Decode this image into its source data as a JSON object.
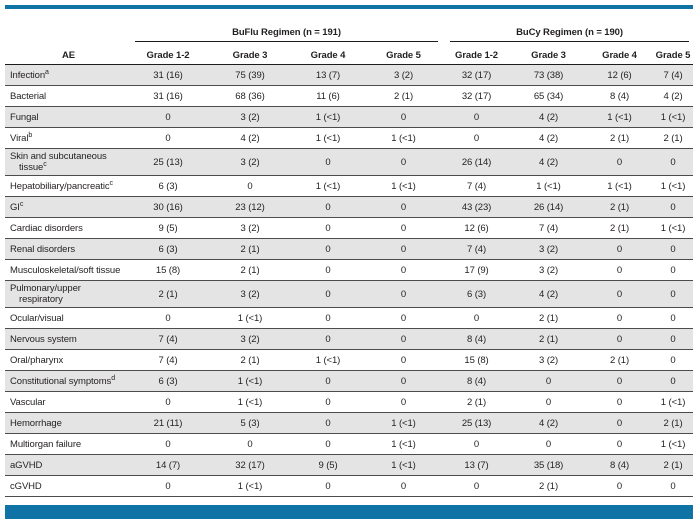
{
  "colors": {
    "accent_blue": "#0f73a5",
    "row_shade": "#e4e4e4",
    "rule_dark": "#1c1c1e"
  },
  "header": {
    "ae": "AE",
    "spanners": [
      "BuFlu Regimen (n = 191)",
      "BuCy Regimen (n = 190)"
    ],
    "grades": [
      "Grade 1-2",
      "Grade 3",
      "Grade 4",
      "Grade 5"
    ]
  },
  "table": {
    "rows": [
      {
        "label": "Infection",
        "sup": "a",
        "values": [
          "31 (16)",
          "75 (39)",
          "13 (7)",
          "3 (2)",
          "32 (17)",
          "73 (38)",
          "12 (6)",
          "7 (4)"
        ]
      },
      {
        "label": "Bacterial",
        "values": [
          "31 (16)",
          "68 (36)",
          "11 (6)",
          "2 (1)",
          "32 (17)",
          "65 (34)",
          "8 (4)",
          "4 (2)"
        ]
      },
      {
        "label": "Fungal",
        "values": [
          "0",
          "3 (2)",
          "1 (<1)",
          "0",
          "0",
          "4 (2)",
          "1 (<1)",
          "1 (<1)"
        ]
      },
      {
        "label": "Viral",
        "sup": "b",
        "values": [
          "0",
          "4 (2)",
          "1 (<1)",
          "1 (<1)",
          "0",
          "4 (2)",
          "2 (1)",
          "2 (1)"
        ]
      },
      {
        "label": "Skin and subcutaneous",
        "label2": "tissue",
        "sup": "c",
        "values": [
          "25 (13)",
          "3 (2)",
          "0",
          "0",
          "26 (14)",
          "4 (2)",
          "0",
          "0"
        ]
      },
      {
        "label": "Hepatobiliary/pancreatic",
        "sup": "c",
        "values": [
          "6 (3)",
          "0",
          "1 (<1)",
          "1 (<1)",
          "7 (4)",
          "1 (<1)",
          "1 (<1)",
          "1 (<1)"
        ]
      },
      {
        "label": "GI",
        "sup": "c",
        "values": [
          "30 (16)",
          "23 (12)",
          "0",
          "0",
          "43 (23)",
          "26 (14)",
          "2 (1)",
          "0"
        ]
      },
      {
        "label": "Cardiac disorders",
        "values": [
          "9 (5)",
          "3 (2)",
          "0",
          "0",
          "12 (6)",
          "7 (4)",
          "2 (1)",
          "1 (<1)"
        ]
      },
      {
        "label": "Renal disorders",
        "values": [
          "6 (3)",
          "2 (1)",
          "0",
          "0",
          "7 (4)",
          "3 (2)",
          "0",
          "0"
        ]
      },
      {
        "label": "Musculoskeletal/soft tissue",
        "values": [
          "15 (8)",
          "2 (1)",
          "0",
          "0",
          "17 (9)",
          "3 (2)",
          "0",
          "0"
        ]
      },
      {
        "label": "Pulmonary/upper",
        "label2": "respiratory",
        "values": [
          "2 (1)",
          "3 (2)",
          "0",
          "0",
          "6 (3)",
          "4 (2)",
          "0",
          "0"
        ]
      },
      {
        "label": "Ocular/visual",
        "values": [
          "0",
          "1 (<1)",
          "0",
          "0",
          "0",
          "2 (1)",
          "0",
          "0"
        ]
      },
      {
        "label": "Nervous system",
        "values": [
          "7 (4)",
          "3 (2)",
          "0",
          "0",
          "8 (4)",
          "2 (1)",
          "0",
          "0"
        ]
      },
      {
        "label": "Oral/pharynx",
        "values": [
          "7 (4)",
          "2 (1)",
          "1 (<1)",
          "0",
          "15 (8)",
          "3 (2)",
          "2 (1)",
          "0"
        ]
      },
      {
        "label": "Constitutional symptoms",
        "sup": "d",
        "values": [
          "6 (3)",
          "1 (<1)",
          "0",
          "0",
          "8 (4)",
          "0",
          "0",
          "0"
        ]
      },
      {
        "label": "Vascular",
        "values": [
          "0",
          "1 (<1)",
          "0",
          "0",
          "2 (1)",
          "0",
          "0",
          "1 (<1)"
        ]
      },
      {
        "label": "Hemorrhage",
        "values": [
          "21 (11)",
          "5 (3)",
          "0",
          "1 (<1)",
          "25 (13)",
          "4 (2)",
          "0",
          "2 (1)"
        ]
      },
      {
        "label": "Multiorgan failure",
        "values": [
          "0",
          "0",
          "0",
          "1 (<1)",
          "0",
          "0",
          "0",
          "1 (<1)"
        ]
      },
      {
        "label": "aGVHD",
        "values": [
          "14 (7)",
          "32 (17)",
          "9 (5)",
          "1 (<1)",
          "13 (7)",
          "35 (18)",
          "8 (4)",
          "2 (1)"
        ]
      },
      {
        "label": "cGVHD",
        "values": [
          "0",
          "1 (<1)",
          "0",
          "0",
          "0",
          "2 (1)",
          "0",
          "0"
        ]
      }
    ]
  }
}
